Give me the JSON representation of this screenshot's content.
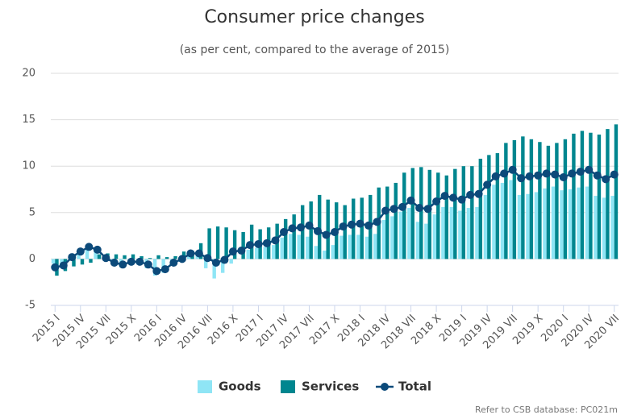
{
  "chart_data": {
    "type": "bar_line",
    "title": "Consumer price changes",
    "subtitle": "(as per cent, compared to the average of 2015)",
    "note": "Refer to CSB database: PC021m",
    "categories": [
      "2015 I",
      null,
      null,
      "2015 IV",
      null,
      null,
      "2015 VII",
      null,
      null,
      "2015 X",
      null,
      null,
      "2016 I",
      null,
      null,
      "2016 IV",
      null,
      null,
      "2016 VII",
      null,
      null,
      "2016 X",
      null,
      null,
      "2017 I",
      null,
      null,
      "2017 IV",
      null,
      null,
      "2017 VII",
      null,
      null,
      "2017 X",
      null,
      null,
      "2018 I",
      null,
      null,
      "2018 IV",
      null,
      null,
      "2018 VII",
      null,
      null,
      "2018 X",
      null,
      null,
      "2019 I",
      null,
      null,
      "2019 IV",
      null,
      null,
      "2019 VII",
      null,
      null,
      "2019 X",
      null,
      null,
      "2020 I",
      null,
      null,
      "2020 IV",
      null,
      null,
      "2020 VII"
    ],
    "series": [
      {
        "name": "Goods",
        "kind": "bar",
        "color": "#8fe5f5",
        "values": [
          -0.5,
          -1.0,
          0.0,
          0.6,
          1.5,
          1.2,
          0.3,
          -0.5,
          -0.9,
          -0.5,
          -0.6,
          -1.0,
          -1.8,
          -1.5,
          -0.6,
          -0.3,
          0.4,
          0.5,
          -1.0,
          -2.1,
          -1.5,
          -0.5,
          0.0,
          1.0,
          1.2,
          1.3,
          1.5,
          2.3,
          2.7,
          2.6,
          2.4,
          1.4,
          0.9,
          1.5,
          2.5,
          2.6,
          2.6,
          2.4,
          2.7,
          4.2,
          4.6,
          5.1,
          5.5,
          4.0,
          3.8,
          4.8,
          5.6,
          5.6,
          5.2,
          5.5,
          5.6,
          6.9,
          8.0,
          8.2,
          8.5,
          6.9,
          7.0,
          7.2,
          7.6,
          7.8,
          7.4,
          7.5,
          7.7,
          7.8,
          6.8,
          6.6,
          6.8
        ]
      },
      {
        "name": "Services",
        "kind": "bar",
        "color": "#00868f",
        "values": [
          -1.8,
          -1.3,
          -0.8,
          -0.6,
          -0.4,
          0.5,
          0.6,
          0.5,
          0.4,
          0.5,
          0.3,
          0.1,
          0.4,
          0.2,
          0.3,
          0.8,
          0.9,
          1.7,
          3.3,
          3.5,
          3.4,
          3.1,
          2.9,
          3.7,
          3.2,
          3.4,
          3.8,
          4.3,
          4.8,
          5.8,
          6.2,
          6.9,
          6.4,
          6.1,
          5.8,
          6.5,
          6.6,
          6.9,
          7.7,
          7.8,
          8.2,
          9.3,
          9.8,
          9.9,
          9.6,
          9.3,
          9.0,
          9.7,
          10.0,
          10.0,
          10.8,
          11.2,
          11.4,
          12.5,
          12.8,
          13.2,
          12.9,
          12.6,
          12.2,
          12.5,
          12.9,
          13.5,
          13.8,
          13.6,
          13.4,
          14.0,
          14.5
        ]
      },
      {
        "name": "Total",
        "kind": "line",
        "color": "#0c4a7a",
        "values": [
          -0.9,
          -0.7,
          0.2,
          0.8,
          1.3,
          1.0,
          0.1,
          -0.4,
          -0.6,
          -0.3,
          -0.3,
          -0.6,
          -1.3,
          -1.1,
          -0.4,
          0.0,
          0.6,
          0.6,
          0.1,
          -0.4,
          -0.1,
          0.8,
          0.9,
          1.5,
          1.6,
          1.7,
          2.0,
          2.9,
          3.3,
          3.4,
          3.6,
          3.0,
          2.6,
          2.9,
          3.5,
          3.7,
          3.8,
          3.6,
          4.0,
          5.2,
          5.4,
          5.6,
          6.3,
          5.5,
          5.4,
          6.2,
          6.8,
          6.6,
          6.4,
          6.9,
          7.0,
          8.0,
          8.9,
          9.2,
          9.6,
          8.7,
          8.9,
          9.0,
          9.2,
          9.1,
          8.8,
          9.2,
          9.4,
          9.6,
          9.0,
          8.6,
          9.1
        ]
      }
    ],
    "ylim": [
      -5,
      20
    ],
    "yticks": [
      -5,
      0,
      5,
      10,
      15,
      20
    ],
    "grid": true,
    "legend": "bottom"
  }
}
